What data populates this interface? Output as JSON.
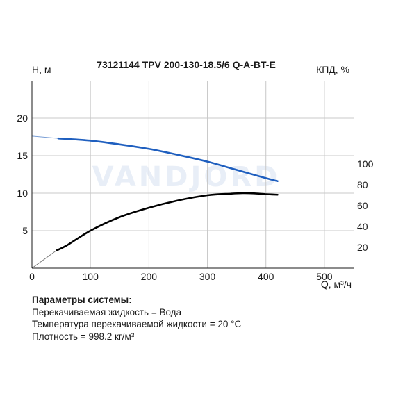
{
  "chart_data": {
    "type": "line",
    "title": "73121144 TPV 200-130-18.5/6 Q-A-BT-E",
    "xlabel": "Q, м³/ч",
    "ylabel": "H, м",
    "y2label": "КПД, %",
    "xlim": [
      0,
      550
    ],
    "ylim": [
      0,
      25
    ],
    "y2lim": [
      0,
      180
    ],
    "xticks": [
      "0",
      "100",
      "200",
      "300",
      "400",
      "500"
    ],
    "yticks": [
      "5",
      "10",
      "15",
      "20"
    ],
    "y2ticks": [
      "20",
      "40",
      "60",
      "80",
      "100"
    ],
    "grid": true,
    "watermark": "VANDJORD",
    "series": [
      {
        "name": "H",
        "axis": "left",
        "color": "#1f5fbf",
        "x": [
          45,
          100,
          150,
          200,
          250,
          300,
          350,
          400,
          420
        ],
        "y": [
          17.3,
          17.0,
          16.5,
          15.9,
          15.1,
          14.2,
          13.1,
          12.0,
          11.6
        ]
      },
      {
        "name": "КПД",
        "axis": "right",
        "color": "#000000",
        "x": [
          42,
          60,
          100,
          150,
          200,
          250,
          300,
          340,
          360,
          380,
          400,
          420
        ],
        "y": [
          17,
          22,
          36,
          49,
          58,
          65,
          70,
          71.5,
          72,
          71.8,
          71,
          70.5
        ]
      }
    ],
    "extrapolation": [
      {
        "axis": "left",
        "color": "#7a9fd6",
        "x": [
          0,
          45
        ],
        "y": [
          17.6,
          17.3
        ]
      },
      {
        "axis": "right",
        "color": "#777777",
        "x": [
          0,
          42
        ],
        "y": [
          0,
          17
        ]
      }
    ]
  },
  "system_params": {
    "heading": "Параметры системы:",
    "lines": [
      "Перекачиваемая жидкость = Вода",
      "Температура перекачиваемой жидкости = 20 °С",
      "Плотность = 998.2 кг/м³"
    ]
  }
}
